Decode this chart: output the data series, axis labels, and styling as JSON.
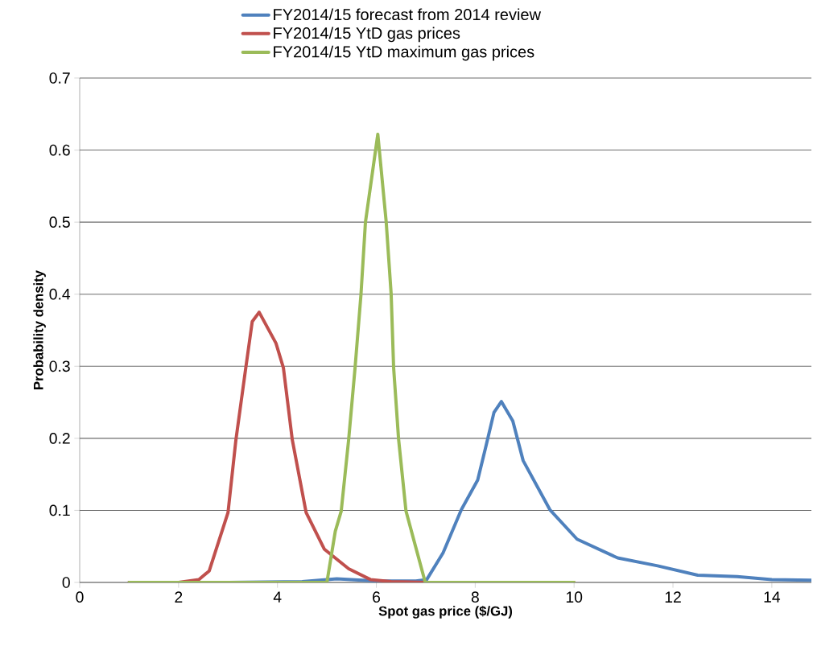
{
  "chart_data": {
    "type": "line",
    "xlabel": "Spot gas price ($/GJ)",
    "ylabel": "Probability density",
    "xlim": [
      0,
      14.8
    ],
    "ylim": [
      0,
      0.7
    ],
    "xticks": [
      0,
      2,
      4,
      6,
      8,
      10,
      12,
      14
    ],
    "yticks": [
      0,
      0.1,
      0.2,
      0.3,
      0.4,
      0.5,
      0.6,
      0.7
    ],
    "grid": "y",
    "legend": "top",
    "marker": "none",
    "line_style": "solid",
    "series": [
      {
        "name": "FY2014/15 forecast from 2014 review",
        "color": "#4f81bd",
        "x": [
          1,
          3,
          4.5,
          5.2,
          6,
          6.8,
          7.02,
          7.35,
          7.72,
          8.05,
          8.21,
          8.38,
          8.53,
          8.76,
          8.97,
          9.51,
          10.06,
          10.88,
          11.69,
          12.5,
          13.3,
          14.0,
          14.8
        ],
        "values": [
          0,
          0,
          0.001,
          0.005,
          0.002,
          0.002,
          0.004,
          0.041,
          0.101,
          0.142,
          0.187,
          0.236,
          0.251,
          0.224,
          0.169,
          0.101,
          0.06,
          0.034,
          0.023,
          0.01,
          0.008,
          0.004,
          0.003
        ]
      },
      {
        "name": "FY2014/15 YtD gas prices",
        "color": "#c0504d",
        "x": [
          1,
          2,
          2.41,
          2.62,
          3.0,
          3.16,
          3.36,
          3.49,
          3.63,
          3.97,
          4.12,
          4.3,
          4.58,
          4.95,
          5.44,
          5.88,
          6.3,
          7,
          10
        ],
        "values": [
          0,
          0,
          0.004,
          0.016,
          0.097,
          0.198,
          0.298,
          0.362,
          0.375,
          0.332,
          0.298,
          0.198,
          0.097,
          0.046,
          0.019,
          0.004,
          0.001,
          0,
          0
        ]
      },
      {
        "name": "FY2014/15 YtD maximum gas prices",
        "color": "#9bbb59",
        "x": [
          1,
          5.0,
          5.17,
          5.29,
          5.44,
          5.57,
          5.69,
          5.78,
          6.03,
          6.2,
          6.3,
          6.35,
          6.45,
          6.6,
          6.99,
          10
        ],
        "values": [
          0,
          0,
          0.071,
          0.099,
          0.198,
          0.298,
          0.4,
          0.5,
          0.622,
          0.5,
          0.4,
          0.298,
          0.199,
          0.099,
          0,
          0
        ]
      }
    ]
  }
}
